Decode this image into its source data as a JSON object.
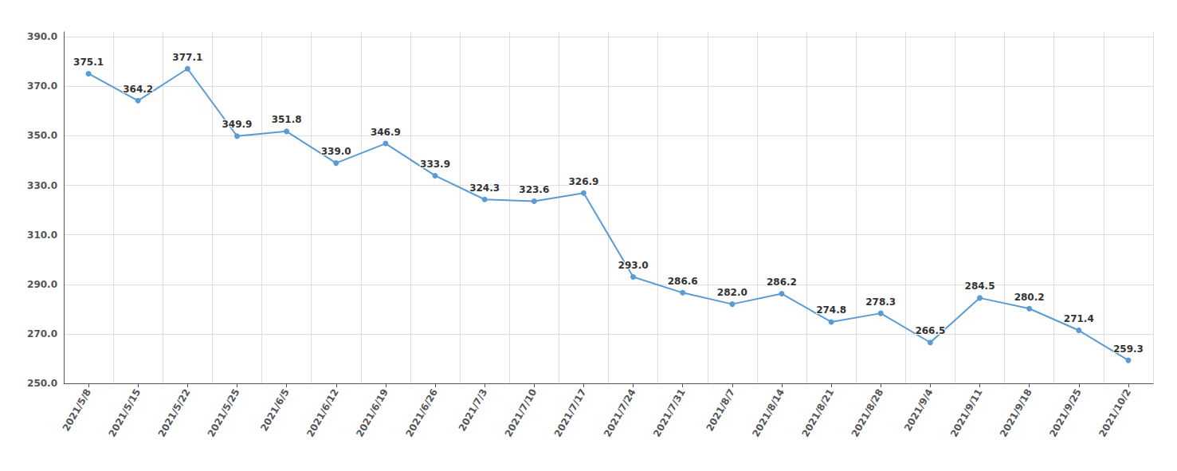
{
  "chart_data": {
    "type": "line",
    "categories": [
      "2021/5/8",
      "2021/5/15",
      "2021/5/22",
      "2021/5/25",
      "2021/6/5",
      "2021/6/12",
      "2021/6/19",
      "2021/6/26",
      "2021/7/3",
      "2021/7/10",
      "2021/7/17",
      "2021/7/24",
      "2021/7/31",
      "2021/8/7",
      "2021/8/14",
      "2021/8/21",
      "2021/8/28",
      "2021/9/4",
      "2021/9/11",
      "2021/9/18",
      "2021/9/25",
      "2021/10/2"
    ],
    "values": [
      375.1,
      364.2,
      377.1,
      349.9,
      351.8,
      339.0,
      346.9,
      333.9,
      324.3,
      323.6,
      326.9,
      293.0,
      286.6,
      282.0,
      286.2,
      274.8,
      278.3,
      266.5,
      284.5,
      280.2,
      271.4,
      259.3
    ],
    "value_labels": [
      "375.1",
      "364.2",
      "377.1",
      "349.9",
      "351.8",
      "339.0",
      "346.9",
      "333.9",
      "324.3",
      "323.6",
      "326.9",
      "293.0",
      "286.6",
      "282.0",
      "286.2",
      "274.8",
      "278.3",
      "266.5",
      "284.5",
      "280.2",
      "271.4",
      "259.3"
    ],
    "color": "#5b9bd5",
    "marker": "circle",
    "ylim": [
      250.0,
      392.0
    ],
    "yticks": [
      {
        "value": 250,
        "label": "250.0"
      },
      {
        "value": 270,
        "label": "270.0"
      },
      {
        "value": 290,
        "label": "290.0"
      },
      {
        "value": 310,
        "label": "310.0"
      },
      {
        "value": 330,
        "label": "330.0"
      },
      {
        "value": 350,
        "label": "350.0"
      },
      {
        "value": 370,
        "label": "370.0"
      },
      {
        "value": 390,
        "label": "390.0"
      }
    ],
    "grid": true,
    "data_labels": true
  }
}
